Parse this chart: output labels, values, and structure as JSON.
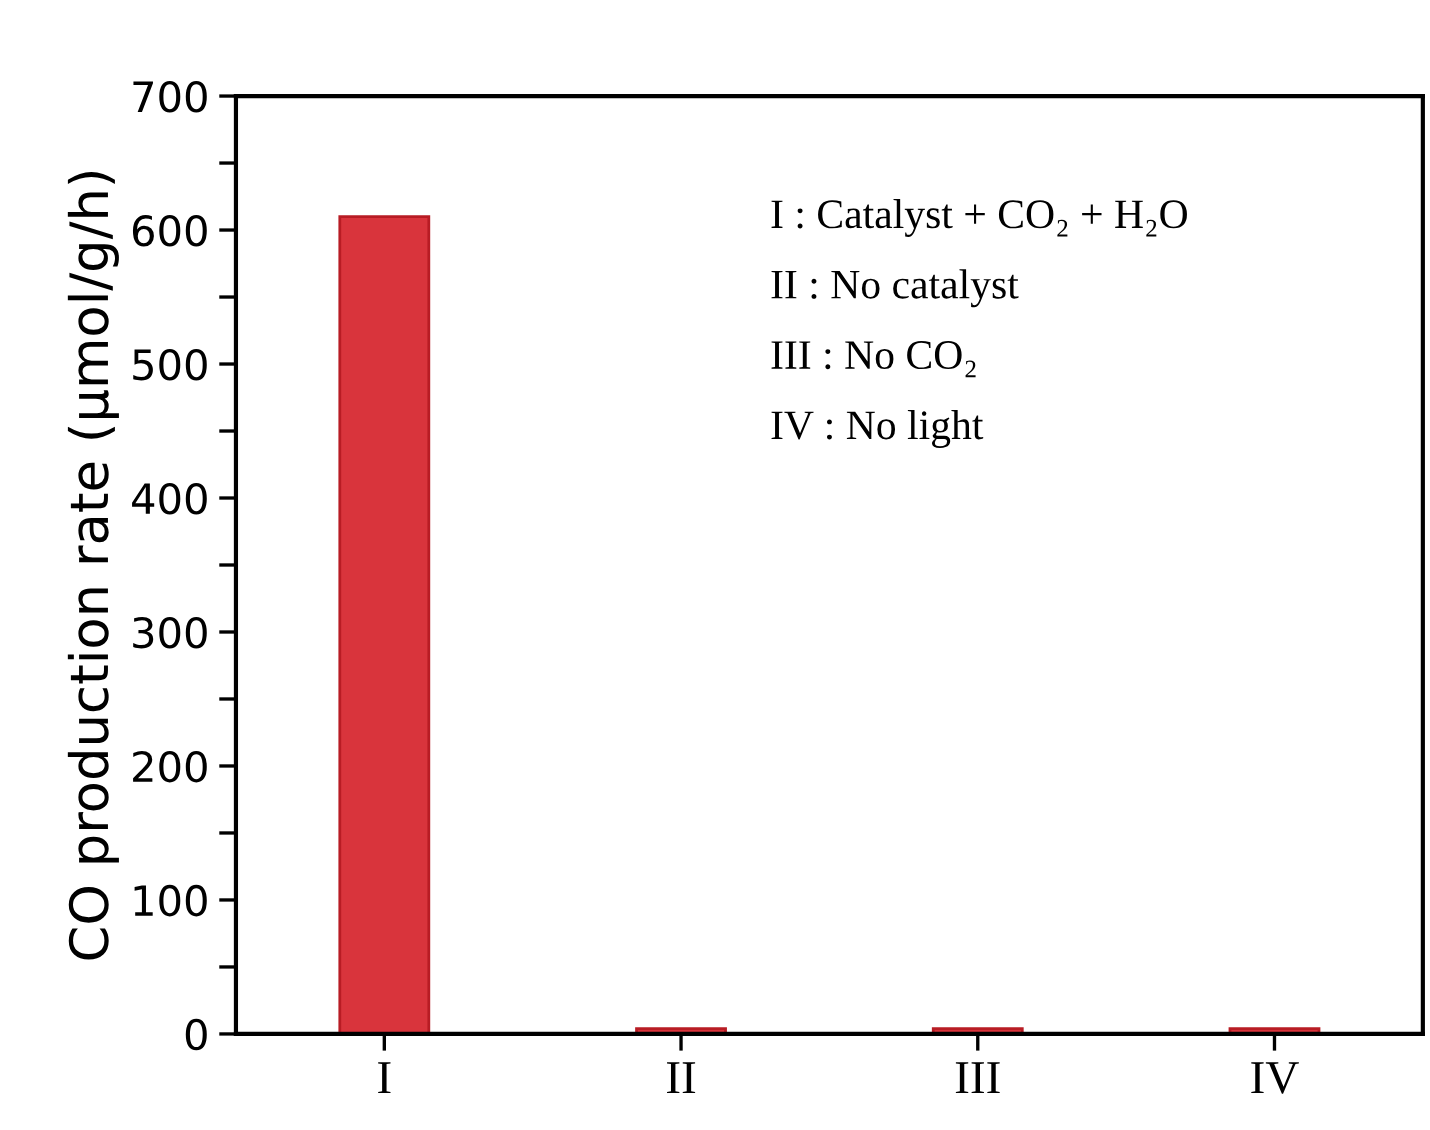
{
  "chart_data": {
    "type": "bar",
    "ylabel": "CO production rate (μmol/g/h)",
    "categories": [
      "I",
      "II",
      "III",
      "IV"
    ],
    "values": [
      610,
      4,
      4,
      4
    ],
    "color": "#d9343c",
    "ylim": [
      0,
      700
    ],
    "yticks": [
      0,
      {
        "value": 50,
        "label": null
      },
      100,
      {
        "value": 150,
        "label": null
      },
      200,
      {
        "value": 250,
        "label": null
      },
      300,
      {
        "value": 350,
        "label": null
      },
      400,
      {
        "value": 450,
        "label": null
      },
      500,
      {
        "value": 550,
        "label": null
      },
      600,
      {
        "value": 650,
        "label": null
      },
      700
    ],
    "grid": false,
    "legend": false,
    "annotations": [
      "I : Catalyst + CO₂ + H₂O",
      "II : No catalyst",
      "III : No CO₂",
      "IV : No light"
    ]
  }
}
